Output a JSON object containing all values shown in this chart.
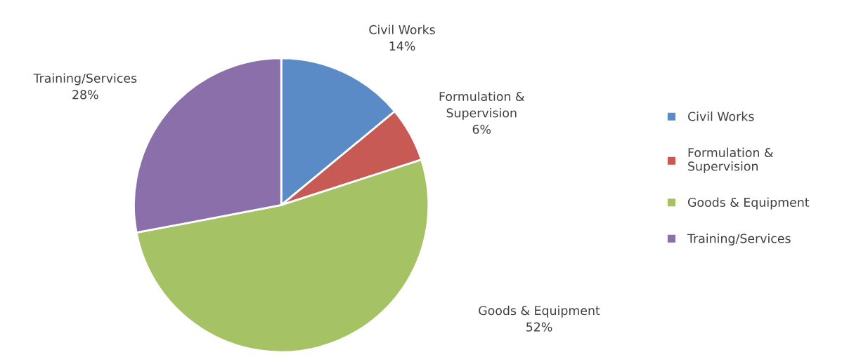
{
  "chart_data": {
    "type": "pie",
    "categories": [
      "Civil Works",
      "Formulation &\nSupervision",
      "Goods & Equipment",
      "Training/Services"
    ],
    "values": [
      14,
      6,
      52,
      28
    ],
    "colors": [
      "#5b8bc7",
      "#c75a55",
      "#a5c264",
      "#8a6fab"
    ],
    "value_labels": [
      "14%",
      "6%",
      "52%",
      "28%"
    ],
    "legend": "right"
  }
}
